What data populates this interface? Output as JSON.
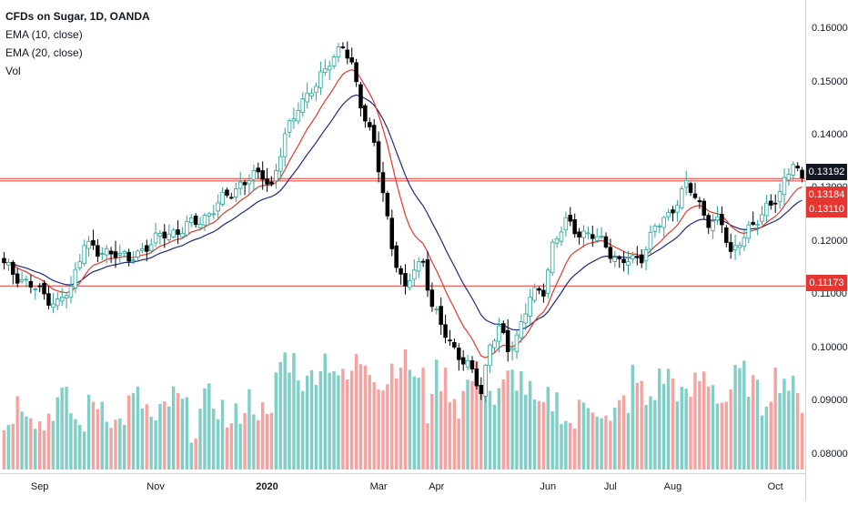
{
  "legend": {
    "title": "CFDs on Sugar, 1D, OANDA",
    "ema10": "EMA (10, close)",
    "ema20": "EMA (20, close)",
    "vol": "Vol"
  },
  "colors": {
    "up": "#26a69a",
    "down": "#000000",
    "vol_up": "#7fcfc6",
    "vol_down": "#f5a3a1",
    "ema10": "#e5372f",
    "ema20": "#1f2a7a",
    "hline": "#e5372f"
  },
  "chart_data": {
    "type": "candlestick",
    "symbol": "CFDs on Sugar",
    "interval": "1D",
    "source": "OANDA",
    "y_axis": {
      "min": 0.0765,
      "max": 0.1655,
      "ticks": [
        "0.16000",
        "0.15000",
        "0.14000",
        "0.13000",
        "0.12000",
        "0.11000",
        "0.10000",
        "0.09000",
        "0.08000"
      ]
    },
    "x_axis": {
      "labels": [
        {
          "label": "Sep",
          "bold": false
        },
        {
          "label": "Nov",
          "bold": false
        },
        {
          "label": "2020",
          "bold": true
        },
        {
          "label": "Mar",
          "bold": false
        },
        {
          "label": "Apr",
          "bold": false
        },
        {
          "label": "Jun",
          "bold": false
        },
        {
          "label": "Jul",
          "bold": false
        },
        {
          "label": "Aug",
          "bold": false
        },
        {
          "label": "Oct",
          "bold": false
        }
      ],
      "label_bar_index": [
        8,
        34,
        59,
        84,
        97,
        122,
        136,
        150,
        173
      ]
    },
    "close_series": [
      [
        0,
        0.1155
      ],
      [
        8,
        0.1105
      ],
      [
        12,
        0.1085
      ],
      [
        15,
        0.111
      ],
      [
        18,
        0.1205
      ],
      [
        21,
        0.1175
      ],
      [
        25,
        0.1185
      ],
      [
        28,
        0.1162
      ],
      [
        32,
        0.1195
      ],
      [
        36,
        0.1213
      ],
      [
        40,
        0.1225
      ],
      [
        44,
        0.124
      ],
      [
        48,
        0.127
      ],
      [
        53,
        0.131
      ],
      [
        58,
        0.1328
      ],
      [
        60,
        0.1305
      ],
      [
        63,
        0.1395
      ],
      [
        66,
        0.146
      ],
      [
        70,
        0.149
      ],
      [
        73,
        0.1545
      ],
      [
        76,
        0.1565
      ],
      [
        78,
        0.153
      ],
      [
        80,
        0.1465
      ],
      [
        83,
        0.138
      ],
      [
        85,
        0.129
      ],
      [
        87,
        0.1195
      ],
      [
        90,
        0.1105
      ],
      [
        92,
        0.115
      ],
      [
        94,
        0.1165
      ],
      [
        96,
        0.108
      ],
      [
        98,
        0.104
      ],
      [
        101,
        0.1
      ],
      [
        104,
        0.0965
      ],
      [
        107,
        0.092
      ],
      [
        109,
        0.101
      ],
      [
        111,
        0.1035
      ],
      [
        113,
        0.0995
      ],
      [
        115,
        0.1025
      ],
      [
        118,
        0.1095
      ],
      [
        121,
        0.111
      ],
      [
        123,
        0.1195
      ],
      [
        126,
        0.1235
      ],
      [
        129,
        0.122
      ],
      [
        132,
        0.121
      ],
      [
        135,
        0.1195
      ],
      [
        138,
        0.116
      ],
      [
        141,
        0.1165
      ],
      [
        143,
        0.1175
      ],
      [
        146,
        0.1225
      ],
      [
        149,
        0.125
      ],
      [
        151,
        0.128
      ],
      [
        153,
        0.1305
      ],
      [
        155,
        0.1285
      ],
      [
        158,
        0.124
      ],
      [
        161,
        0.123
      ],
      [
        163,
        0.118
      ],
      [
        165,
        0.1205
      ],
      [
        168,
        0.1225
      ],
      [
        171,
        0.127
      ],
      [
        174,
        0.1285
      ],
      [
        177,
        0.1355
      ],
      [
        179,
        0.132
      ]
    ],
    "volume_range": [
      0,
      1
    ],
    "horizontal_lines": [
      0.13192,
      0.13145,
      0.11173
    ],
    "price_labels": [
      {
        "text": "0.13192",
        "price": 0.13192,
        "bg": "#131722"
      },
      {
        "text": "0.13184",
        "price": 0.13184,
        "bg": "#e5372f"
      },
      {
        "text": "0.13110",
        "price": 0.1311,
        "bg": "#e5372f"
      },
      {
        "text": "0.11173",
        "price": 0.11173,
        "bg": "#e5372f"
      }
    ],
    "ema_periods": [
      10,
      20
    ],
    "bar_count": 180
  }
}
